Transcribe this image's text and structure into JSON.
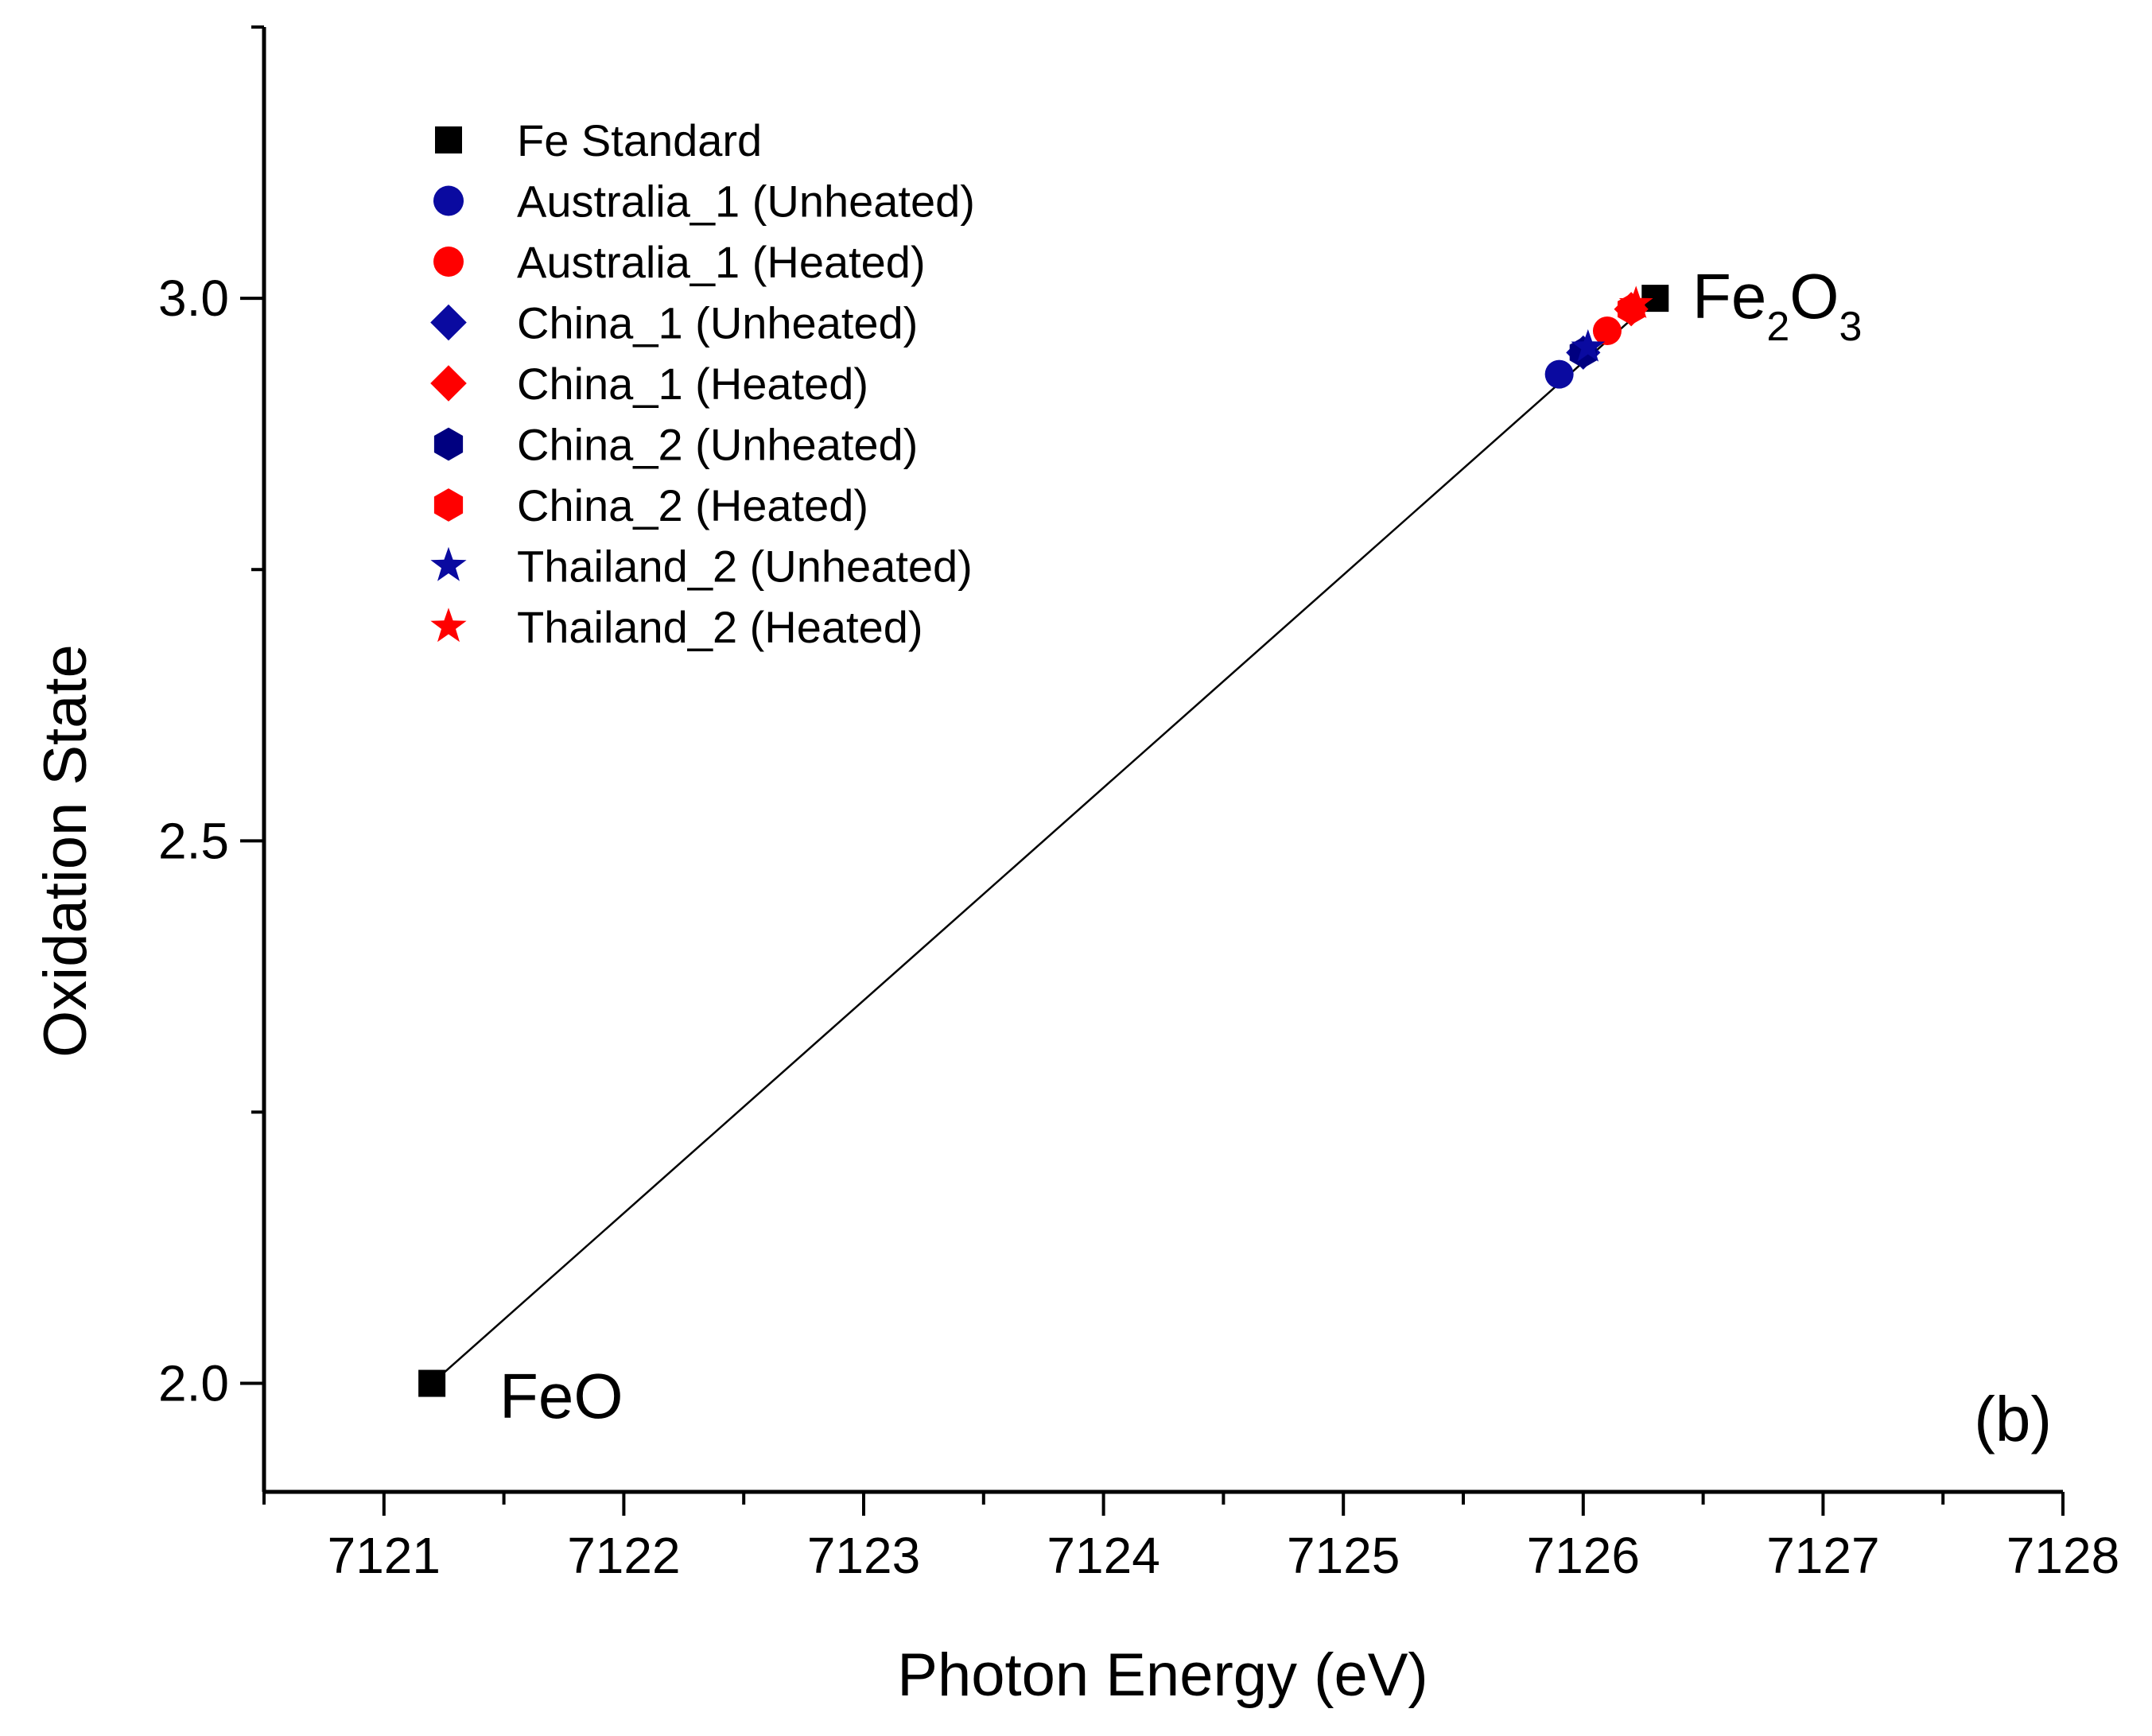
{
  "chart_data": {
    "type": "scatter",
    "panel_label": "(b)",
    "xlabel": "Photon Energy (eV)",
    "ylabel": "Oxidation State",
    "xlim": [
      7120.5,
      7128
    ],
    "ylim": [
      1.9,
      3.25
    ],
    "x_ticks": [
      "7121",
      "7122",
      "7123",
      "7124",
      "7125",
      "7126",
      "7127",
      "7128"
    ],
    "y_ticks": [
      "2.0",
      "2.5",
      "3.0"
    ],
    "fit_line": {
      "x": [
        7121.2,
        7126.3
      ],
      "y": [
        2.0,
        3.0
      ],
      "color": "#000000"
    },
    "annotations": [
      {
        "text": "FeO",
        "x": 7121.2,
        "y": 2.0
      },
      {
        "text_main": "Fe",
        "sub1": "2",
        "text_mid": "O",
        "sub2": "3",
        "x": 7126.3,
        "y": 3.0
      }
    ],
    "series": [
      {
        "name": "Fe Standard",
        "marker": "square",
        "color": "#000000",
        "x": [
          7121.2,
          7126.3
        ],
        "y": [
          2.0,
          3.0
        ]
      },
      {
        "name": "Australia_1 (Unheated)",
        "marker": "circle",
        "color": "#0a0aa0",
        "x": [
          7125.9
        ],
        "y": [
          2.93
        ]
      },
      {
        "name": "Australia_1 (Heated)",
        "marker": "circle",
        "color": "#ff0000",
        "x": [
          7126.1
        ],
        "y": [
          2.97
        ]
      },
      {
        "name": "China_1 (Unheated)",
        "marker": "diamond",
        "color": "#0a0aa0",
        "x": [
          7126.0
        ],
        "y": [
          2.95
        ]
      },
      {
        "name": "China_1 (Heated)",
        "marker": "diamond",
        "color": "#ff0000",
        "x": [
          7126.2
        ],
        "y": [
          2.99
        ]
      },
      {
        "name": "China_2 (Unheated)",
        "marker": "hexagon",
        "color": "#000080",
        "x": [
          7126.0
        ],
        "y": [
          2.95
        ]
      },
      {
        "name": "China_2 (Heated)",
        "marker": "hexagon",
        "color": "#ff0000",
        "x": [
          7126.2
        ],
        "y": [
          2.99
        ]
      },
      {
        "name": "Thailand_2 (Unheated)",
        "marker": "star",
        "color": "#0a0aa0",
        "x": [
          7126.02
        ],
        "y": [
          2.955
        ]
      },
      {
        "name": "Thailand_2 (Heated)",
        "marker": "star",
        "color": "#ff0000",
        "x": [
          7126.22
        ],
        "y": [
          2.995
        ]
      }
    ]
  }
}
